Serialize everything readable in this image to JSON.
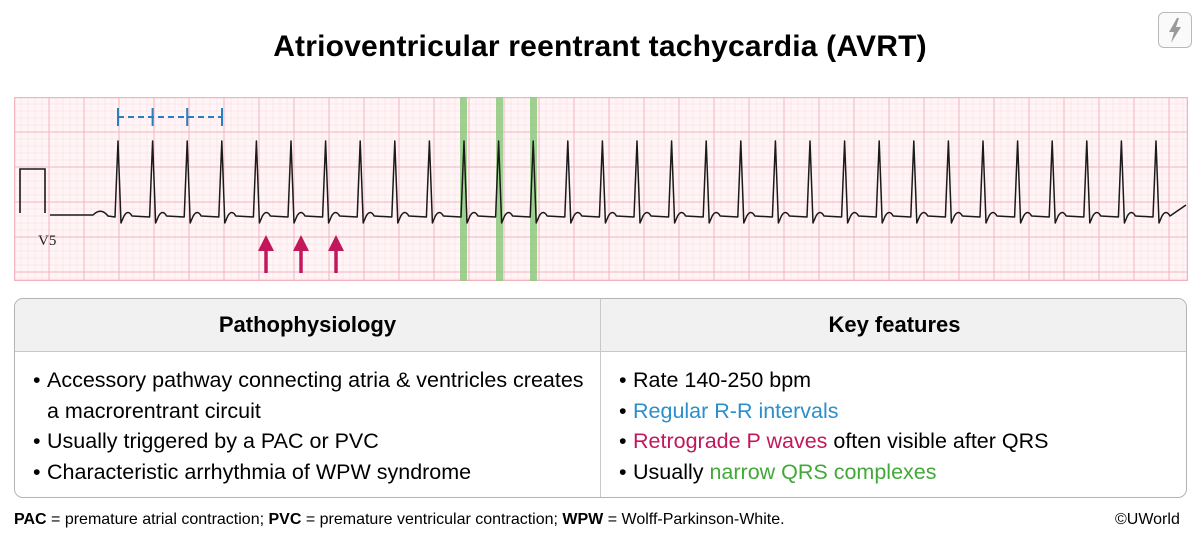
{
  "title": "Atrioventricular reentrant tachycardia (AVRT)",
  "corner_icon": "lightning-bolt-icon",
  "ecg": {
    "lead_label": "V5",
    "annotations": {
      "rr_interval_markers": "blue dashed bracket with tick marks (regular R-R intervals)",
      "retrograde_p_arrows": 3,
      "narrow_qrs_highlights": 3
    },
    "colors": {
      "grid_major": "#f2b3bf",
      "grid_minor": "#f9dce2",
      "trace": "#1a1a1a",
      "rr_marker": "#2a7fc1",
      "arrow": "#c2185b",
      "qrs_highlight": "#8dc97e"
    }
  },
  "table": {
    "left": {
      "header": "Pathophysiology",
      "items": [
        "Accessory pathway connecting atria & ventricles creates a macrorentrant circuit",
        "Usually triggered by a PAC or PVC",
        "Characteristic arrhythmia of WPW syndrome"
      ]
    },
    "right": {
      "header": "Key features",
      "item1": "Rate 140-250 bpm",
      "item2": "Regular R-R intervals",
      "item3_highlight": "Retrograde P waves",
      "item3_rest": " often visible after QRS",
      "item4_prefix": "Usually ",
      "item4_highlight": "narrow QRS complexes"
    }
  },
  "footnote": {
    "pac_abbr": "PAC",
    "pac_def": " = premature atrial contraction; ",
    "pvc_abbr": "PVC",
    "pvc_def": " = premature ventricular contraction; ",
    "wpw_abbr": "WPW",
    "wpw_def": " = Wolff-Parkinson-White."
  },
  "copyright": "©UWorld",
  "colors": {
    "blue_text": "#2a8fcc",
    "magenta_text": "#c2185b",
    "green_text": "#43a83a"
  }
}
